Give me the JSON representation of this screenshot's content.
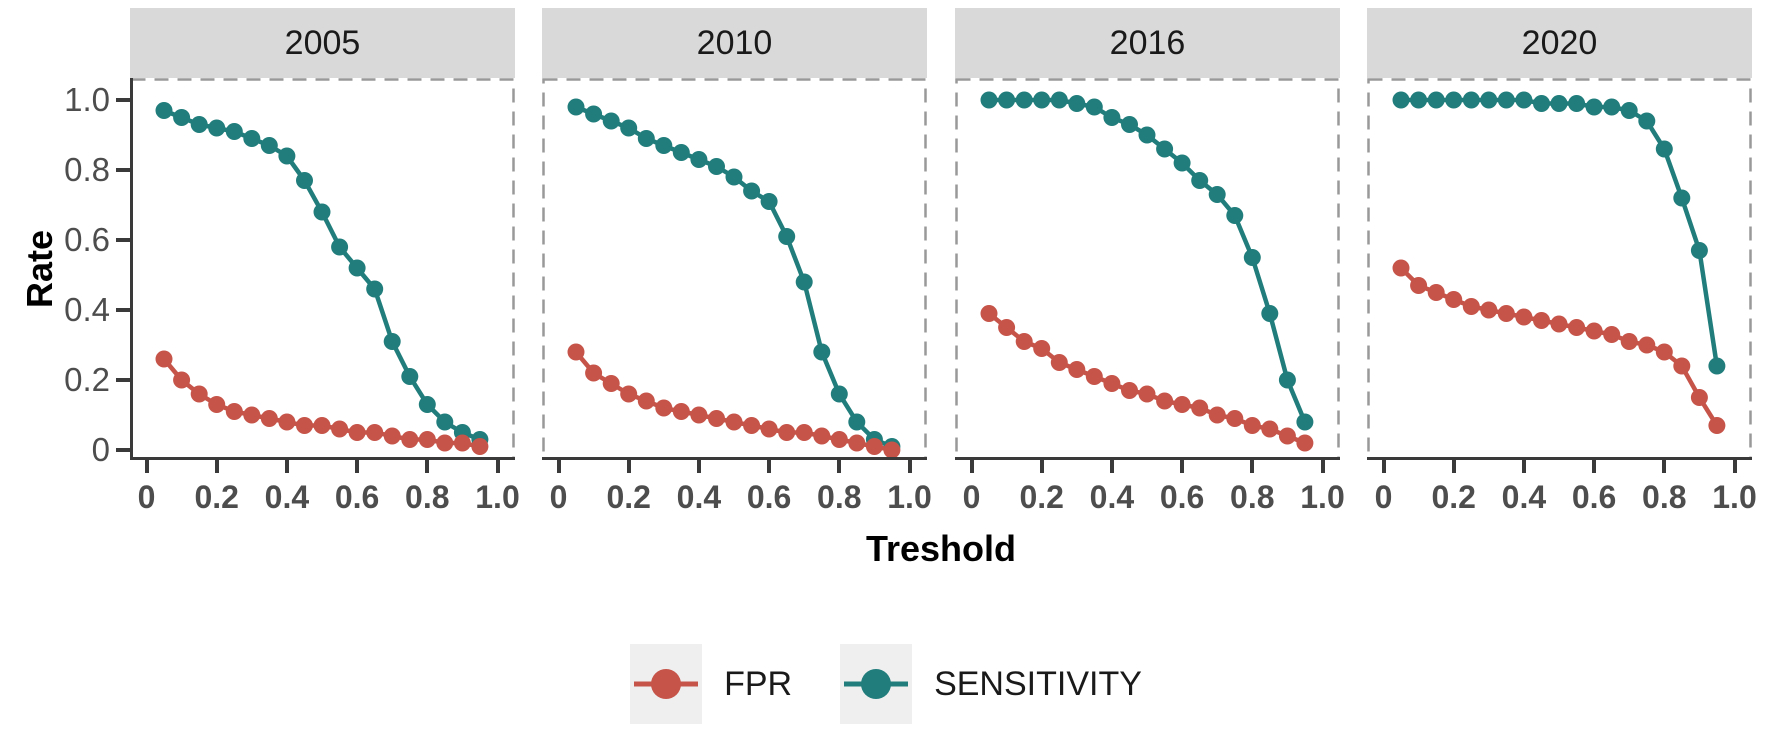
{
  "figure": {
    "y_axis_title": "Rate",
    "x_axis_title": "Treshold"
  },
  "axes": {
    "y_tick_labels": [
      "1.0",
      "0.8",
      "0.6",
      "0.4",
      "0.2",
      "0"
    ],
    "y_tick_values": [
      1.0,
      0.8,
      0.6,
      0.4,
      0.2,
      0
    ],
    "x_tick_labels": [
      "0",
      "0.2",
      "0.4",
      "0.6",
      "0.8",
      "1.0"
    ],
    "x_tick_values": [
      0,
      0.2,
      0.4,
      0.6,
      0.8,
      1.0
    ]
  },
  "colors": {
    "fpr": "#C65449",
    "sensitivity": "#207D7B",
    "strip_bg": "#D9D9D9",
    "panel_border": "#999999",
    "axis_line": "#3A3A3A",
    "tick_label": "#4D4D4D",
    "legend_key_bg": "#EFEFEF"
  },
  "legend": {
    "items": [
      {
        "label": "FPR",
        "color_key": "fpr"
      },
      {
        "label": "SENSITIVITY",
        "color_key": "sensitivity"
      }
    ],
    "position": "bottom"
  },
  "chart_data": {
    "type": "line",
    "title": "",
    "xlabel": "Treshold",
    "ylabel": "Rate",
    "xlim": [
      0,
      1.0
    ],
    "ylim": [
      0,
      1.0
    ],
    "grid": false,
    "legend_position": "bottom",
    "facets": [
      "2005",
      "2010",
      "2016",
      "2020"
    ],
    "series_names": [
      "FPR",
      "SENSITIVITY"
    ],
    "x": [
      0.05,
      0.1,
      0.15,
      0.2,
      0.25,
      0.3,
      0.35,
      0.4,
      0.45,
      0.5,
      0.55,
      0.6,
      0.65,
      0.7,
      0.75,
      0.8,
      0.85,
      0.9,
      0.95
    ],
    "panels": [
      {
        "facet": "2005",
        "SENSITIVITY": [
          0.97,
          0.95,
          0.93,
          0.92,
          0.91,
          0.89,
          0.87,
          0.84,
          0.77,
          0.68,
          0.58,
          0.52,
          0.46,
          0.31,
          0.21,
          0.13,
          0.08,
          0.05,
          0.03
        ],
        "FPR": [
          0.26,
          0.2,
          0.16,
          0.13,
          0.11,
          0.1,
          0.09,
          0.08,
          0.07,
          0.07,
          0.06,
          0.05,
          0.05,
          0.04,
          0.03,
          0.03,
          0.02,
          0.02,
          0.01
        ]
      },
      {
        "facet": "2010",
        "SENSITIVITY": [
          0.98,
          0.96,
          0.94,
          0.92,
          0.89,
          0.87,
          0.85,
          0.83,
          0.81,
          0.78,
          0.74,
          0.71,
          0.61,
          0.48,
          0.28,
          0.16,
          0.08,
          0.03,
          0.01
        ],
        "FPR": [
          0.28,
          0.22,
          0.19,
          0.16,
          0.14,
          0.12,
          0.11,
          0.1,
          0.09,
          0.08,
          0.07,
          0.06,
          0.05,
          0.05,
          0.04,
          0.03,
          0.02,
          0.01,
          0.0
        ]
      },
      {
        "facet": "2016",
        "SENSITIVITY": [
          1.0,
          1.0,
          1.0,
          1.0,
          1.0,
          0.99,
          0.98,
          0.95,
          0.93,
          0.9,
          0.86,
          0.82,
          0.77,
          0.73,
          0.67,
          0.55,
          0.39,
          0.2,
          0.08
        ],
        "FPR": [
          0.39,
          0.35,
          0.31,
          0.29,
          0.25,
          0.23,
          0.21,
          0.19,
          0.17,
          0.16,
          0.14,
          0.13,
          0.12,
          0.1,
          0.09,
          0.07,
          0.06,
          0.04,
          0.02
        ]
      },
      {
        "facet": "2020",
        "SENSITIVITY": [
          1.0,
          1.0,
          1.0,
          1.0,
          1.0,
          1.0,
          1.0,
          1.0,
          0.99,
          0.99,
          0.99,
          0.98,
          0.98,
          0.97,
          0.94,
          0.86,
          0.72,
          0.57,
          0.24
        ],
        "FPR": [
          0.52,
          0.47,
          0.45,
          0.43,
          0.41,
          0.4,
          0.39,
          0.38,
          0.37,
          0.36,
          0.35,
          0.34,
          0.33,
          0.31,
          0.3,
          0.28,
          0.24,
          0.15,
          0.07
        ]
      }
    ]
  }
}
